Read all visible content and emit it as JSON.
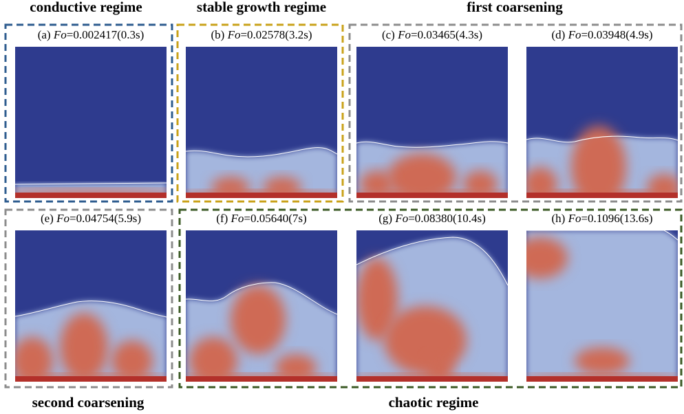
{
  "regimes": {
    "top": [
      "conductive regime",
      "stable growth regime",
      "first coarsening"
    ],
    "bottom": [
      "second coarsening",
      "chaotic regime"
    ]
  },
  "panels": [
    {
      "label": "(a) ",
      "var": "Fo",
      "value": "=0.002417(0.3s)"
    },
    {
      "label": "(b) ",
      "var": "Fo",
      "value": "=0.02578(3.2s)"
    },
    {
      "label": "(c) ",
      "var": "Fo",
      "value": "=0.03465(4.3s)"
    },
    {
      "label": "(d) ",
      "var": "Fo",
      "value": "=0.03948(4.9s)"
    },
    {
      "label": "(e) ",
      "var": "Fo",
      "value": "=0.04754(5.9s)"
    },
    {
      "label": "(f) ",
      "var": "Fo",
      "value": "=0.05640(7s)"
    },
    {
      "label": "(g) ",
      "var": "Fo",
      "value": "=0.08380(10.4s)"
    },
    {
      "label": "(h) ",
      "var": "Fo",
      "value": "=0.1096(13.6s)"
    }
  ]
}
